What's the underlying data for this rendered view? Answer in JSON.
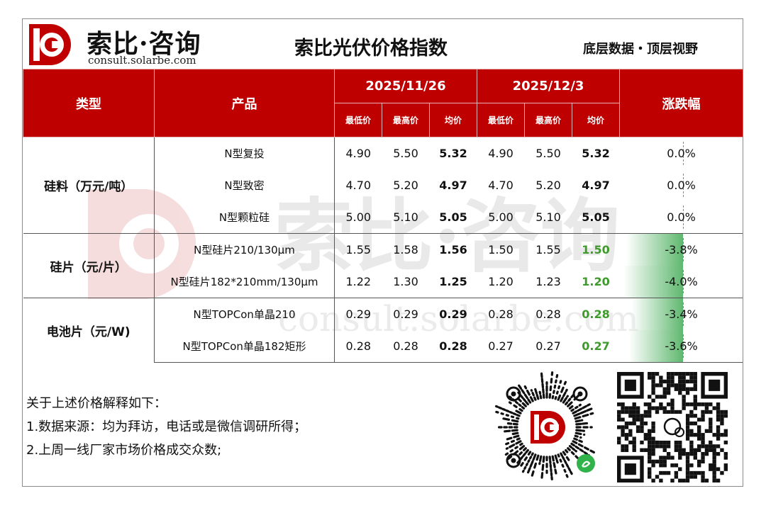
{
  "header": {
    "logo_cn": "索比·咨询",
    "logo_en": "consult.solarbe.com",
    "title": "索比光伏价格指数",
    "slogan": "底层数据・顶层视野"
  },
  "table": {
    "col_type": "类型",
    "col_product": "产品",
    "col_change": "涨跌幅",
    "date1": "2025/11/26",
    "date2": "2025/12/3",
    "sub_min": "最低价",
    "sub_max": "最高价",
    "sub_avg": "均价",
    "groups": [
      {
        "category": "硅料（万元/吨）",
        "rows": [
          {
            "product": "N型复投",
            "p1_min": "4.90",
            "p1_max": "5.50",
            "p1_avg": "5.32",
            "p2_min": "4.90",
            "p2_max": "5.50",
            "p2_avg": "5.32",
            "change": "0.0%",
            "change_value": 0.0
          },
          {
            "product": "N型致密",
            "p1_min": "4.70",
            "p1_max": "5.20",
            "p1_avg": "4.97",
            "p2_min": "4.70",
            "p2_max": "5.20",
            "p2_avg": "4.97",
            "change": "0.0%",
            "change_value": 0.0
          },
          {
            "product": "N型颗粒硅",
            "p1_min": "5.00",
            "p1_max": "5.10",
            "p1_avg": "5.05",
            "p2_min": "5.00",
            "p2_max": "5.10",
            "p2_avg": "5.05",
            "change": "0.0%",
            "change_value": 0.0
          }
        ]
      },
      {
        "category": "硅片（元/片）",
        "rows": [
          {
            "product": "N型硅片210/130μm",
            "p1_min": "1.55",
            "p1_max": "1.58",
            "p1_avg": "1.56",
            "p2_min": "1.50",
            "p2_max": "1.55",
            "p2_avg": "1.50",
            "change": "-3.8%",
            "change_value": -3.8
          },
          {
            "product": "N型硅片182*210mm/130μm",
            "p1_min": "1.22",
            "p1_max": "1.30",
            "p1_avg": "1.25",
            "p2_min": "1.20",
            "p2_max": "1.23",
            "p2_avg": "1.20",
            "change": "-4.0%",
            "change_value": -4.0
          }
        ]
      },
      {
        "category": "电池片（元/W)",
        "rows": [
          {
            "product": "N型TOPCon单晶210",
            "p1_min": "0.29",
            "p1_max": "0.29",
            "p1_avg": "0.29",
            "p2_min": "0.28",
            "p2_max": "0.28",
            "p2_avg": "0.28",
            "change": "-3.4%",
            "change_value": -3.4
          },
          {
            "product": "N型TOPCon单晶182矩形",
            "p1_min": "0.28",
            "p1_max": "0.28",
            "p1_avg": "0.28",
            "p2_min": "0.27",
            "p2_max": "0.27",
            "p2_avg": "0.27",
            "change": "-3.6%",
            "change_value": -3.6
          }
        ]
      }
    ]
  },
  "notes": {
    "heading": "关于上述价格解释如下：",
    "line1": "1.数据来源：均为拜访，电话或是微信调研所得；",
    "line2": "2.上周一线厂家市场价格成交众数;"
  },
  "watermark": {
    "cn": "索比·咨询",
    "en": "consult.solarbe.com"
  },
  "colors": {
    "brand_red": "#bf0000",
    "decline_green": "#3d9a2b"
  },
  "icons": {
    "logo": "solarbe-d-logo-icon",
    "miniprogram_qr": "miniprogram-qr-code-icon",
    "wechat_qr": "wechat-qr-code-icon"
  }
}
